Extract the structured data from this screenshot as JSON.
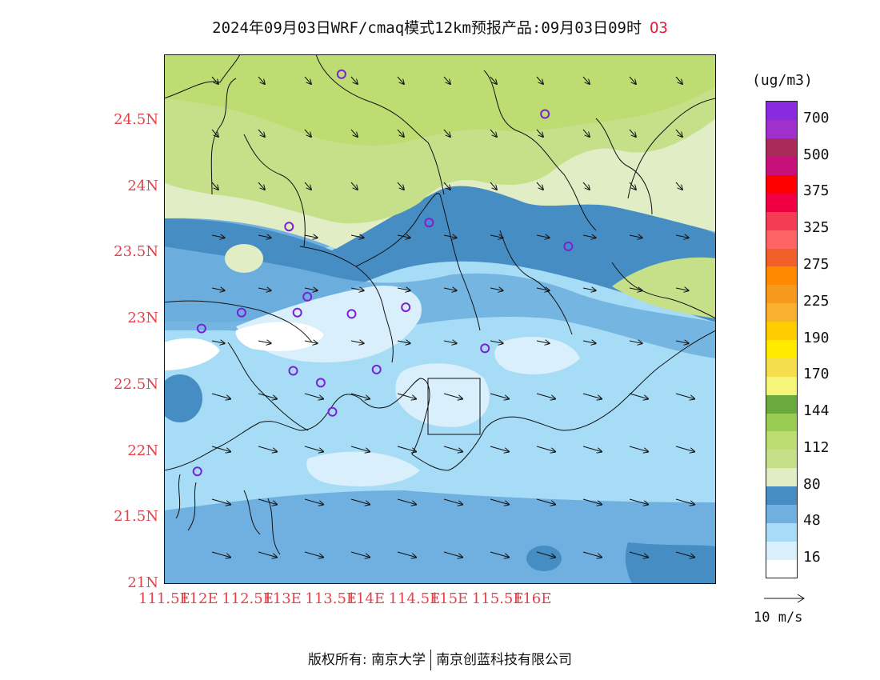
{
  "title": {
    "main": "2024年09月03日WRF/cmaq模式12km预报产品:09月03日09时",
    "species": "O3"
  },
  "map": {
    "lat_labels": [
      "24.5N",
      "24N",
      "23.5N",
      "23N",
      "22.5N",
      "22N",
      "21.5N",
      "21N"
    ],
    "lon_labels": [
      "111.5E",
      "112E",
      "112.5E",
      "113E",
      "113.5E",
      "114E",
      "114.5E",
      "115E",
      "115.5E",
      "116E"
    ],
    "stations": [
      {
        "lon": 113.63,
        "lat": 24.85
      },
      {
        "lon": 116.07,
        "lat": 24.55
      },
      {
        "lon": 113.0,
        "lat": 23.7
      },
      {
        "lon": 114.68,
        "lat": 23.73
      },
      {
        "lon": 116.35,
        "lat": 23.55
      },
      {
        "lon": 112.43,
        "lat": 23.05
      },
      {
        "lon": 111.95,
        "lat": 22.93
      },
      {
        "lon": 113.1,
        "lat": 23.05
      },
      {
        "lon": 113.22,
        "lat": 23.17
      },
      {
        "lon": 113.75,
        "lat": 23.04
      },
      {
        "lon": 114.4,
        "lat": 23.09
      },
      {
        "lon": 115.35,
        "lat": 22.78
      },
      {
        "lon": 113.05,
        "lat": 22.61
      },
      {
        "lon": 113.38,
        "lat": 22.52
      },
      {
        "lon": 114.05,
        "lat": 22.62
      },
      {
        "lon": 113.52,
        "lat": 22.3
      },
      {
        "lon": 111.9,
        "lat": 21.85
      }
    ]
  },
  "legend": {
    "unit": "(ug/m3)",
    "colors": [
      "#ffffff",
      "#d9effb",
      "#a6dcf6",
      "#6fb0e0",
      "#468dc4",
      "#e1edc4",
      "#c6e08a",
      "#bddc72",
      "#98cc52",
      "#6aaa3c",
      "#f5f57a",
      "#f5de4c",
      "#ffea00",
      "#ffcc00",
      "#f8b030",
      "#f59a1c",
      "#ff8a00",
      "#f06028",
      "#ff6464",
      "#f53c55",
      "#f00040",
      "#ff0000",
      "#c8107a",
      "#aa2a5a",
      "#a030cc",
      "#8a2ae0"
    ],
    "labels": [
      "16",
      "48",
      "80",
      "112",
      "144",
      "170",
      "190",
      "225",
      "275",
      "325",
      "375",
      "500",
      "700"
    ]
  },
  "wind_ref": {
    "label": "10 m/s"
  },
  "footer": {
    "left": "版权所有: 南京大学",
    "right": "南京创蓝科技有限公司"
  }
}
